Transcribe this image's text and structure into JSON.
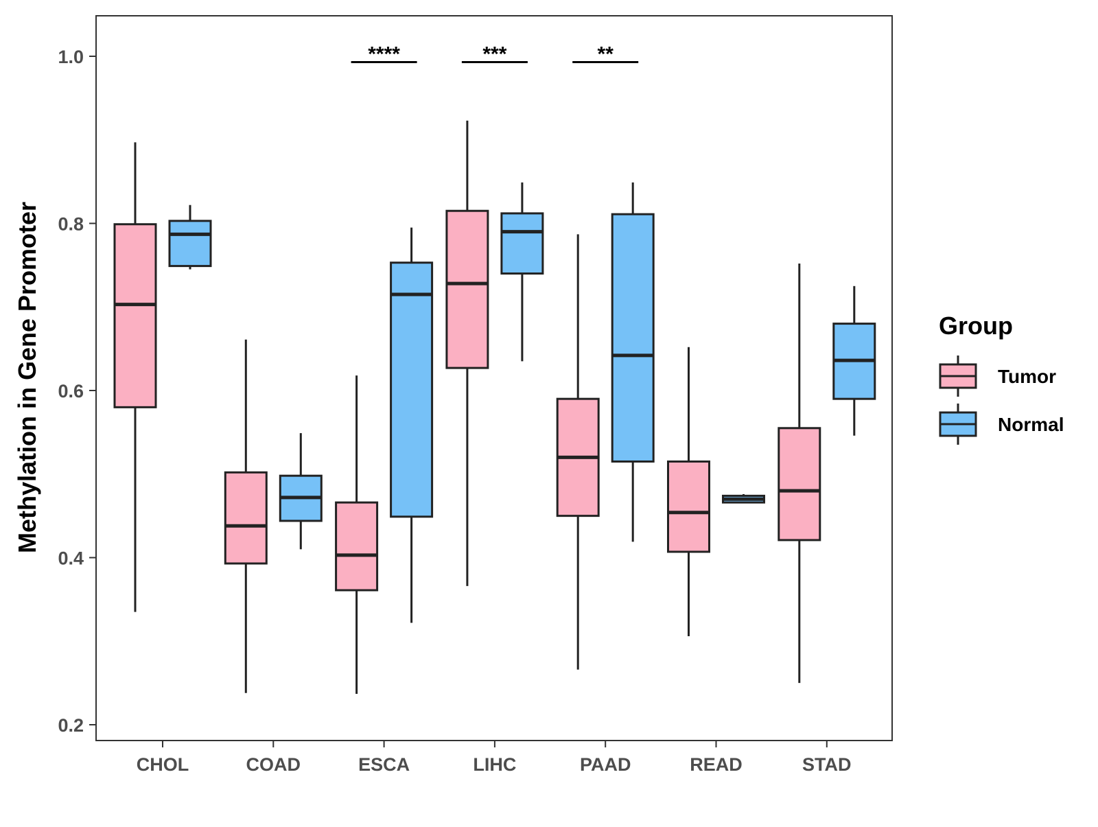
{
  "chart_data": {
    "type": "boxplot",
    "title": "",
    "xlabel": "",
    "ylabel": "Methylation in Gene Promoter",
    "ylim": [
      0.18,
      1.05
    ],
    "yticks": [
      0.2,
      0.4,
      0.6,
      0.8,
      1.0
    ],
    "ytick_labels": [
      "0.2",
      "0.4",
      "0.6",
      "0.8",
      "1.0"
    ],
    "categories": [
      "CHOL",
      "COAD",
      "ESCA",
      "LIHC",
      "PAAD",
      "READ",
      "STAD"
    ],
    "legend": {
      "title": "Group",
      "position": "right"
    },
    "series": [
      {
        "name": "Tumor",
        "color": "#FBB0C2",
        "boxes": [
          {
            "whisker_low": 0.335,
            "q1": 0.58,
            "median": 0.703,
            "q3": 0.799,
            "whisker_high": 0.897
          },
          {
            "whisker_low": 0.238,
            "q1": 0.393,
            "median": 0.438,
            "q3": 0.502,
            "whisker_high": 0.661
          },
          {
            "whisker_low": 0.237,
            "q1": 0.361,
            "median": 0.403,
            "q3": 0.466,
            "whisker_high": 0.618
          },
          {
            "whisker_low": 0.366,
            "q1": 0.627,
            "median": 0.728,
            "q3": 0.815,
            "whisker_high": 0.923
          },
          {
            "whisker_low": 0.266,
            "q1": 0.45,
            "median": 0.52,
            "q3": 0.59,
            "whisker_high": 0.787
          },
          {
            "whisker_low": 0.306,
            "q1": 0.407,
            "median": 0.454,
            "q3": 0.515,
            "whisker_high": 0.652
          },
          {
            "whisker_low": 0.25,
            "q1": 0.421,
            "median": 0.48,
            "q3": 0.555,
            "whisker_high": 0.752
          }
        ]
      },
      {
        "name": "Normal",
        "color": "#76C1F7",
        "boxes": [
          {
            "whisker_low": 0.745,
            "q1": 0.749,
            "median": 0.787,
            "q3": 0.803,
            "whisker_high": 0.822
          },
          {
            "whisker_low": 0.41,
            "q1": 0.444,
            "median": 0.472,
            "q3": 0.498,
            "whisker_high": 0.549
          },
          {
            "whisker_low": 0.322,
            "q1": 0.449,
            "median": 0.715,
            "q3": 0.753,
            "whisker_high": 0.795
          },
          {
            "whisker_low": 0.635,
            "q1": 0.74,
            "median": 0.79,
            "q3": 0.812,
            "whisker_high": 0.849
          },
          {
            "whisker_low": 0.419,
            "q1": 0.515,
            "median": 0.642,
            "q3": 0.811,
            "whisker_high": 0.849
          },
          {
            "whisker_low": 0.466,
            "q1": 0.466,
            "median": 0.47,
            "q3": 0.474,
            "whisker_high": 0.476
          },
          {
            "whisker_low": 0.546,
            "q1": 0.59,
            "median": 0.636,
            "q3": 0.68,
            "whisker_high": 0.725
          }
        ]
      }
    ],
    "significance": [
      {
        "category": "ESCA",
        "label": "****",
        "y": 0.993
      },
      {
        "category": "LIHC",
        "label": "***",
        "y": 0.993
      },
      {
        "category": "PAAD",
        "label": "**",
        "y": 0.993
      }
    ],
    "grid": false
  }
}
